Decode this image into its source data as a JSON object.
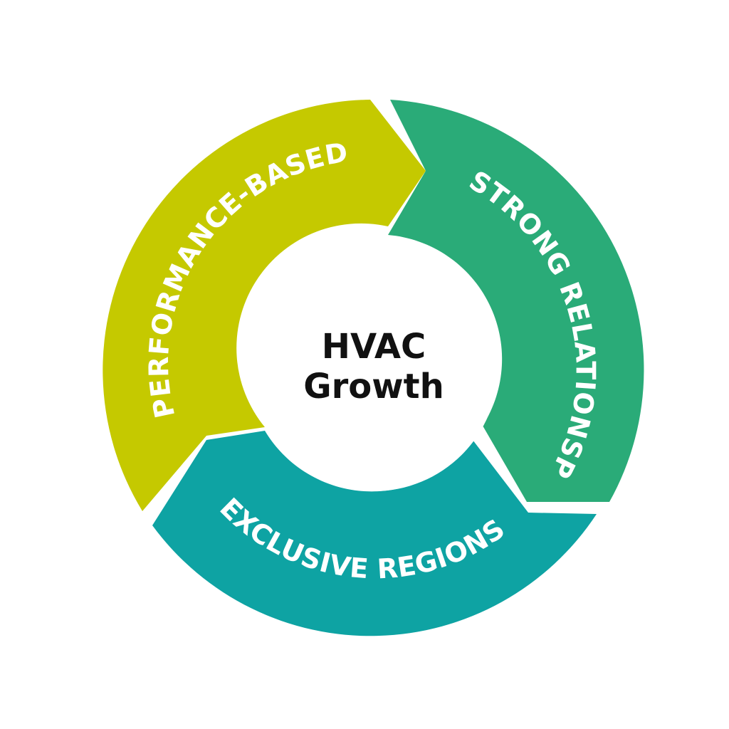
{
  "center": {
    "line1": "HVAC",
    "line2": "Growth"
  },
  "segments": [
    {
      "label": "PERFORMANCE-BASED",
      "color": "#c5c900"
    },
    {
      "label": "STRONG RELATIONSP",
      "color": "#2aab78"
    },
    {
      "label": "EXCLUSIVE REGIONS",
      "color": "#0ea3a3"
    }
  ]
}
